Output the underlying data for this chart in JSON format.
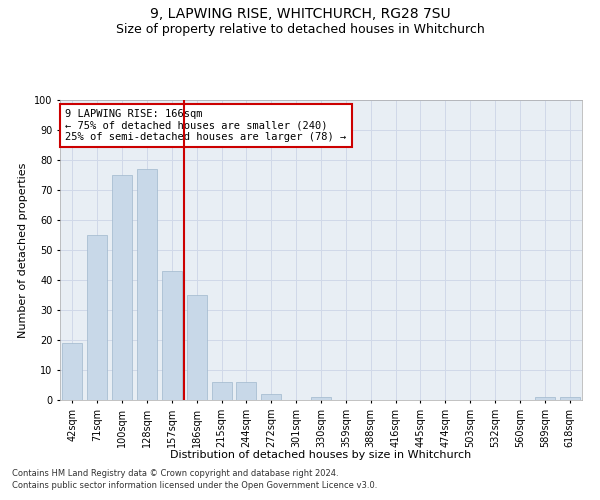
{
  "title1": "9, LAPWING RISE, WHITCHURCH, RG28 7SU",
  "title2": "Size of property relative to detached houses in Whitchurch",
  "xlabel": "Distribution of detached houses by size in Whitchurch",
  "ylabel": "Number of detached properties",
  "categories": [
    "42sqm",
    "71sqm",
    "100sqm",
    "128sqm",
    "157sqm",
    "186sqm",
    "215sqm",
    "244sqm",
    "272sqm",
    "301sqm",
    "330sqm",
    "359sqm",
    "388sqm",
    "416sqm",
    "445sqm",
    "474sqm",
    "503sqm",
    "532sqm",
    "560sqm",
    "589sqm",
    "618sqm"
  ],
  "values": [
    19,
    55,
    75,
    77,
    43,
    35,
    6,
    6,
    2,
    0,
    1,
    0,
    0,
    0,
    0,
    0,
    0,
    0,
    0,
    1,
    1
  ],
  "bar_color": "#c8d8e8",
  "bar_edge_color": "#a0b8cc",
  "vline_color": "#cc0000",
  "annotation_text": "9 LAPWING RISE: 166sqm\n← 75% of detached houses are smaller (240)\n25% of semi-detached houses are larger (78) →",
  "annotation_box_color": "#ffffff",
  "annotation_box_edge": "#cc0000",
  "ylim": [
    0,
    100
  ],
  "yticks": [
    0,
    10,
    20,
    30,
    40,
    50,
    60,
    70,
    80,
    90,
    100
  ],
  "grid_color": "#d0d8e8",
  "bg_color": "#e8eef4",
  "footer1": "Contains HM Land Registry data © Crown copyright and database right 2024.",
  "footer2": "Contains public sector information licensed under the Open Government Licence v3.0.",
  "title1_fontsize": 10,
  "title2_fontsize": 9,
  "xlabel_fontsize": 8,
  "ylabel_fontsize": 8,
  "tick_fontsize": 7,
  "annot_fontsize": 7.5,
  "footer_fontsize": 6
}
